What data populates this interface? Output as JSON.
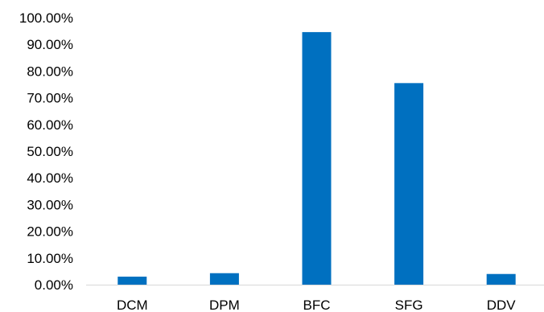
{
  "chart_data": {
    "type": "bar",
    "title": "",
    "xlabel": "",
    "ylabel": "",
    "categories": [
      "DCM",
      "DPM",
      "BFC",
      "SFG",
      "DDV"
    ],
    "values": [
      3.0,
      4.3,
      94.6,
      75.5,
      4.0
    ],
    "ylim": [
      0,
      100
    ],
    "y_ticks": [
      "0.00%",
      "10.00%",
      "20.00%",
      "30.00%",
      "40.00%",
      "50.00%",
      "60.00%",
      "70.00%",
      "80.00%",
      "90.00%",
      "100.00%"
    ],
    "grid": false,
    "legend": "none",
    "bar_color": "#0070C0"
  }
}
